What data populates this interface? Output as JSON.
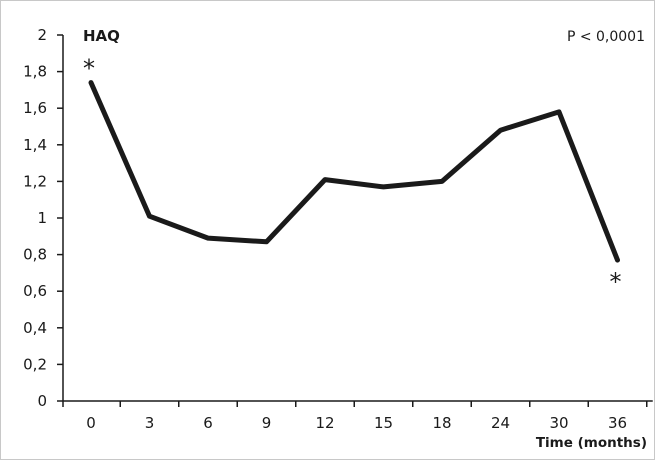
{
  "chart_data": {
    "type": "line",
    "title": "HAQ",
    "xlabel": "Time (months)",
    "ylabel": "",
    "annotation": "P < 0,0001",
    "categories": [
      "0",
      "3",
      "6",
      "9",
      "12",
      "15",
      "18",
      "24",
      "30",
      "36"
    ],
    "series": [
      {
        "values": [
          1.74,
          1.01,
          0.89,
          0.87,
          1.21,
          1.17,
          1.2,
          1.48,
          1.58,
          0.77
        ],
        "color": "#1a1a1a"
      }
    ],
    "ylim": [
      0,
      2
    ],
    "yticks": [
      "0",
      "0,2",
      "0,4",
      "0,6",
      "0,8",
      "1",
      "1,2",
      "1,4",
      "1,6",
      "1,8",
      "2"
    ],
    "markers": [
      {
        "category": "0",
        "symbol": "*",
        "position": "above"
      },
      {
        "category": "36",
        "symbol": "*",
        "position": "below"
      }
    ],
    "grid": false,
    "legend": "none"
  }
}
